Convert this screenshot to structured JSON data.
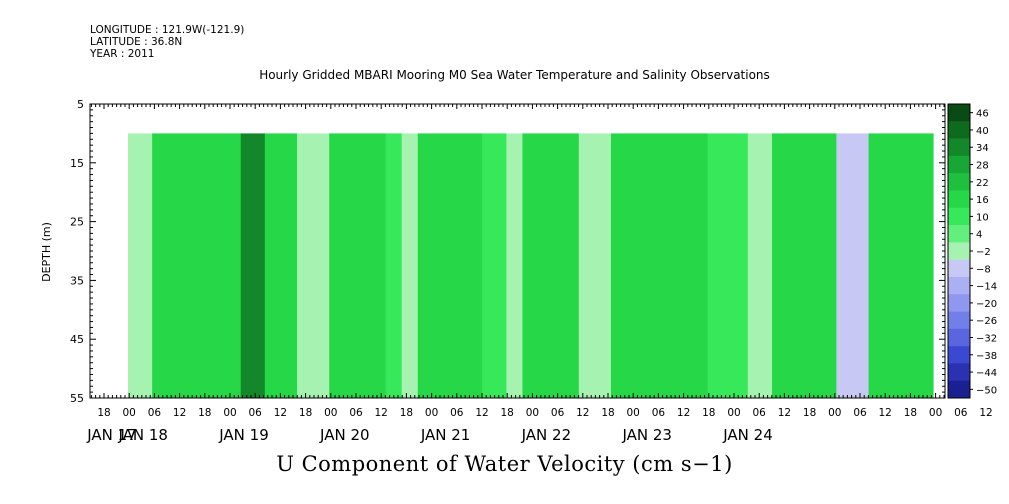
{
  "header": {
    "longitude": "LONGITUDE : 121.9W(-121.9)",
    "latitude": "LATITUDE : 36.8N",
    "year": "YEAR : 2011"
  },
  "chart_data": {
    "type": "heatmap",
    "title": "Hourly Gridded MBARI Mooring M0 Sea Water Temperature and Salinity Observations",
    "xlabel": "U Component of Water Velocity (cm s−1)",
    "ylabel": "DEPTH (m)",
    "ylim": [
      55,
      5
    ],
    "y_ticks": [
      "5",
      "15",
      "25",
      "35",
      "45",
      "55"
    ],
    "data_depth_range": [
      10,
      55
    ],
    "x_hour_ticks": [
      "18",
      "00",
      "06",
      "12",
      "18",
      "00",
      "06",
      "12",
      "18",
      "00",
      "06",
      "12",
      "18",
      "00",
      "06",
      "12",
      "18",
      "00",
      "06",
      "12",
      "18",
      "00",
      "06",
      "12",
      "18",
      "00",
      "06",
      "12",
      "18",
      "00",
      "06",
      "12",
      "18",
      "00",
      "06",
      "12"
    ],
    "x_day_labels": [
      "JAN 17",
      "JAN 18",
      "JAN 19",
      "JAN 20",
      "JAN 21",
      "JAN 22",
      "JAN 23",
      "JAN 24"
    ],
    "colorbar": {
      "labels": [
        "46",
        "40",
        "34",
        "28",
        "22",
        "16",
        "10",
        "4",
        "−2",
        "−8",
        "−14",
        "−20",
        "−26",
        "−32",
        "−38",
        "−44",
        "−50"
      ],
      "colors": [
        "#0a4a14",
        "#0e6a1c",
        "#13882a",
        "#18a636",
        "#1fc03f",
        "#26d848",
        "#37e85a",
        "#63ef7e",
        "#a6f2b0",
        "#c8c8f4",
        "#aab0f2",
        "#8f98ee",
        "#727fe8",
        "#5a66e0",
        "#3b48d2",
        "#2a32b2",
        "#1b2090"
      ]
    },
    "velocity_bands": [
      {
        "x0": 0.0,
        "x1": 0.03,
        "value": -6
      },
      {
        "x0": 0.03,
        "x1": 0.14,
        "value": 10
      },
      {
        "x0": 0.14,
        "x1": 0.17,
        "value": 28
      },
      {
        "x0": 0.17,
        "x1": 0.21,
        "value": 10
      },
      {
        "x0": 0.21,
        "x1": 0.25,
        "value": -6
      },
      {
        "x0": 0.25,
        "x1": 0.32,
        "value": 10
      },
      {
        "x0": 0.32,
        "x1": 0.34,
        "value": 4
      },
      {
        "x0": 0.34,
        "x1": 0.36,
        "value": -4
      },
      {
        "x0": 0.36,
        "x1": 0.44,
        "value": 10
      },
      {
        "x0": 0.44,
        "x1": 0.47,
        "value": 4
      },
      {
        "x0": 0.47,
        "x1": 0.49,
        "value": -6
      },
      {
        "x0": 0.49,
        "x1": 0.56,
        "value": 14
      },
      {
        "x0": 0.56,
        "x1": 0.6,
        "value": -4
      },
      {
        "x0": 0.6,
        "x1": 0.72,
        "value": 10
      },
      {
        "x0": 0.72,
        "x1": 0.77,
        "value": 4
      },
      {
        "x0": 0.77,
        "x1": 0.8,
        "value": -8
      },
      {
        "x0": 0.8,
        "x1": 0.88,
        "value": 10
      },
      {
        "x0": 0.88,
        "x1": 0.92,
        "value": -14
      },
      {
        "x0": 0.92,
        "x1": 1.0,
        "value": 10
      }
    ]
  }
}
